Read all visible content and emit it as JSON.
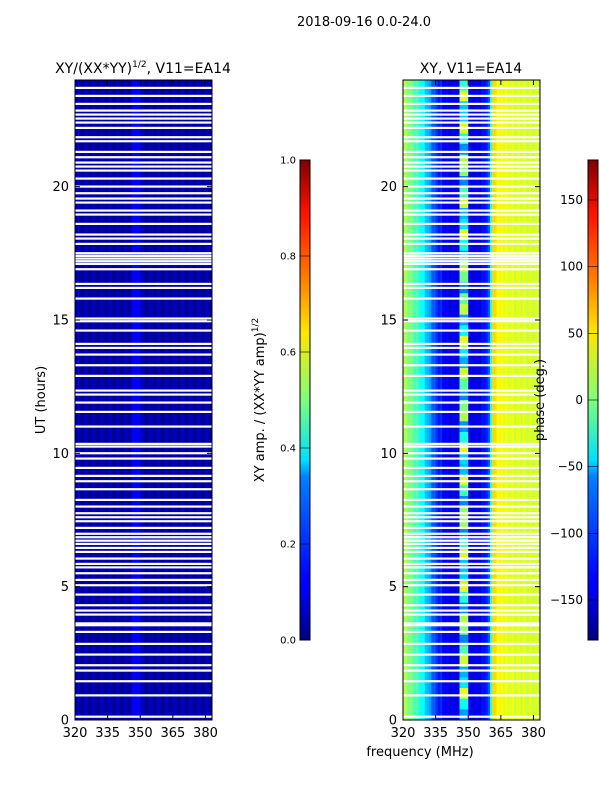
{
  "suptitle": "2018-09-16 0.0-24.0",
  "colors": {
    "background": "#ffffff",
    "panel_left_base": "#0a1f9e",
    "gap_white": "#ffffff"
  },
  "chart_data": [
    {
      "type": "heatmap",
      "title": "XY/(XX*YY)",
      "title_exp": "1/2",
      "title_suffix": ", V11=EA14",
      "xlabel": "",
      "ylabel": "UT (hours)",
      "xlim": [
        320,
        383
      ],
      "ylim": [
        0,
        24
      ],
      "xticks": [
        320,
        335,
        350,
        365,
        380
      ],
      "yticks": [
        0,
        5,
        10,
        15,
        20
      ],
      "colorbar": {
        "label": "XY amp. / (XX*YY amp)",
        "label_exp": "1/2",
        "range": [
          0.0,
          1.0
        ],
        "ticks": [
          "0.0",
          "0.2",
          "0.4",
          "0.6",
          "0.8",
          "1.0"
        ],
        "tick_values": [
          0.0,
          0.2,
          0.4,
          0.6,
          0.8,
          1.0
        ],
        "colormap": "jet"
      },
      "typical_value": 0.04,
      "features": [
        {
          "x_center": 348,
          "width": 4,
          "value": 0.12,
          "note": "slightly brighter channel band"
        }
      ],
      "gaps_hours": [
        0.12,
        0.92,
        1.45,
        1.85,
        2.05,
        2.45,
        2.85,
        3.3,
        3.55,
        3.62,
        3.95,
        4.1,
        4.3,
        4.7,
        5.05,
        5.25,
        5.5,
        5.72,
        5.85,
        6.05,
        6.3,
        6.45,
        6.6,
        6.72,
        6.85,
        6.98,
        7.2,
        7.45,
        7.6,
        7.75,
        8.0,
        8.25,
        8.65,
        8.95,
        9.15,
        9.45,
        9.8,
        10.0,
        10.25,
        10.35,
        11.0,
        11.55,
        11.9,
        12.2,
        12.35,
        12.9,
        13.3,
        13.7,
        13.95,
        14.1,
        14.6,
        14.95,
        15.05,
        15.8,
        16.2,
        16.35,
        16.9,
        17.1,
        17.2,
        17.3,
        17.4,
        17.5,
        17.85,
        18.05,
        18.2,
        18.6,
        18.95,
        19.1,
        19.4,
        19.55,
        19.75,
        20.0,
        20.3,
        20.6,
        20.75,
        20.9,
        21.1,
        21.3,
        21.7,
        21.85,
        22.2,
        22.4,
        22.55,
        22.7,
        22.85,
        23.1,
        23.4,
        23.7
      ]
    },
    {
      "type": "heatmap",
      "title": "XY, V11=EA14",
      "xlabel": "frequency (MHz)",
      "ylabel": "",
      "xlim": [
        320,
        383
      ],
      "ylim": [
        0,
        24
      ],
      "xticks": [
        320,
        335,
        350,
        365,
        380
      ],
      "yticks": [
        0,
        5,
        10,
        15,
        20
      ],
      "colorbar": {
        "label": "phase (deg.)",
        "range": [
          -180,
          180
        ],
        "ticks": [
          "150",
          "100",
          "50",
          "0",
          "−50",
          "−100",
          "−150"
        ],
        "tick_values": [
          150,
          100,
          50,
          0,
          -50,
          -100,
          -150
        ],
        "colormap": "jet"
      },
      "phase_profile": {
        "freq_mhz": [
          320,
          327,
          332,
          335,
          340,
          350,
          356,
          360,
          361,
          363,
          366,
          372,
          380,
          383
        ],
        "phase_deg": [
          20,
          -25,
          -75,
          -115,
          -140,
          -145,
          -140,
          -110,
          60,
          50,
          38,
          33,
          30,
          28
        ]
      },
      "features": [
        {
          "x_center": 348,
          "width": 4,
          "note": "distinct channel band with varying phase"
        }
      ],
      "gaps_hours": [
        0.12,
        0.92,
        1.45,
        1.85,
        2.05,
        2.45,
        2.85,
        3.3,
        3.55,
        3.62,
        3.95,
        4.1,
        4.3,
        4.7,
        5.05,
        5.25,
        5.5,
        5.72,
        5.85,
        6.05,
        6.3,
        6.45,
        6.6,
        6.72,
        6.85,
        6.98,
        7.2,
        7.45,
        7.6,
        7.75,
        8.0,
        8.25,
        8.65,
        8.95,
        9.15,
        9.45,
        9.8,
        10.0,
        10.25,
        10.35,
        11.0,
        11.55,
        11.9,
        12.2,
        12.35,
        12.9,
        13.3,
        13.7,
        13.95,
        14.1,
        14.6,
        14.95,
        15.05,
        15.8,
        16.2,
        16.35,
        16.9,
        17.1,
        17.2,
        17.3,
        17.4,
        17.5,
        17.85,
        18.05,
        18.2,
        18.6,
        18.95,
        19.1,
        19.4,
        19.55,
        19.75,
        20.0,
        20.3,
        20.6,
        20.75,
        20.9,
        21.1,
        21.3,
        21.7,
        21.85,
        22.2,
        22.4,
        22.55,
        22.7,
        22.85,
        23.1,
        23.4,
        23.7
      ]
    }
  ]
}
